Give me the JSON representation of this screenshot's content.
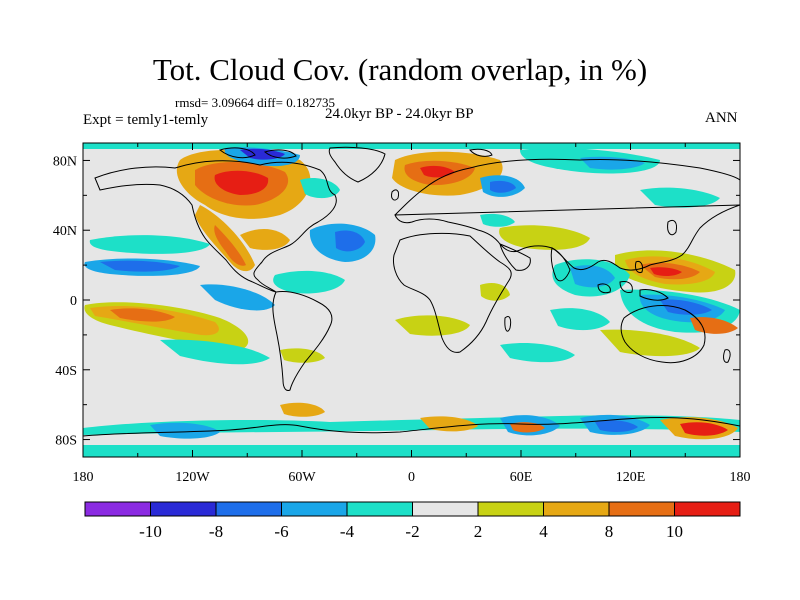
{
  "header": {
    "title": "Tot. Cloud Cov. (random overlap, in %)",
    "stats": "rmsd= 3.09664 diff= 0.182735",
    "experiment": "Expt = temly1-temly",
    "period": "24.0kyr BP - 24.0kyr BP",
    "season": "ANN"
  },
  "map": {
    "lat_ticks": [
      {
        "lat": 80,
        "label": "80N"
      },
      {
        "lat": 40,
        "label": "40N"
      },
      {
        "lat": 0,
        "label": "0"
      },
      {
        "lat": -40,
        "label": "40S"
      },
      {
        "lat": -80,
        "label": "80S"
      }
    ],
    "lon_ticks": [
      {
        "lon": -180,
        "label": "180"
      },
      {
        "lon": -120,
        "label": "120W"
      },
      {
        "lon": -60,
        "label": "60W"
      },
      {
        "lon": 0,
        "label": "0"
      },
      {
        "lon": 60,
        "label": "60E"
      },
      {
        "lon": 120,
        "label": "120E"
      },
      {
        "lon": 180,
        "label": "180"
      }
    ]
  },
  "colorbar": {
    "colors": [
      "#8b2be2",
      "#2a2ad6",
      "#1e6eea",
      "#1aa6e8",
      "#1de0c8",
      "#e6e6e6",
      "#c8d214",
      "#e6a814",
      "#e66e14",
      "#e61e14"
    ],
    "labels": [
      "-10",
      "-8",
      "-6",
      "-4",
      "-2",
      "2",
      "4",
      "8",
      "10"
    ]
  },
  "colors": {
    "neutral": "#e6e6e6",
    "positive": [
      "#c8d214",
      "#e6a814",
      "#e66e14",
      "#e61e14"
    ],
    "negative": [
      "#1de0c8",
      "#1aa6e8",
      "#1e6eea",
      "#2a2ad6",
      "#8b2be2"
    ]
  }
}
